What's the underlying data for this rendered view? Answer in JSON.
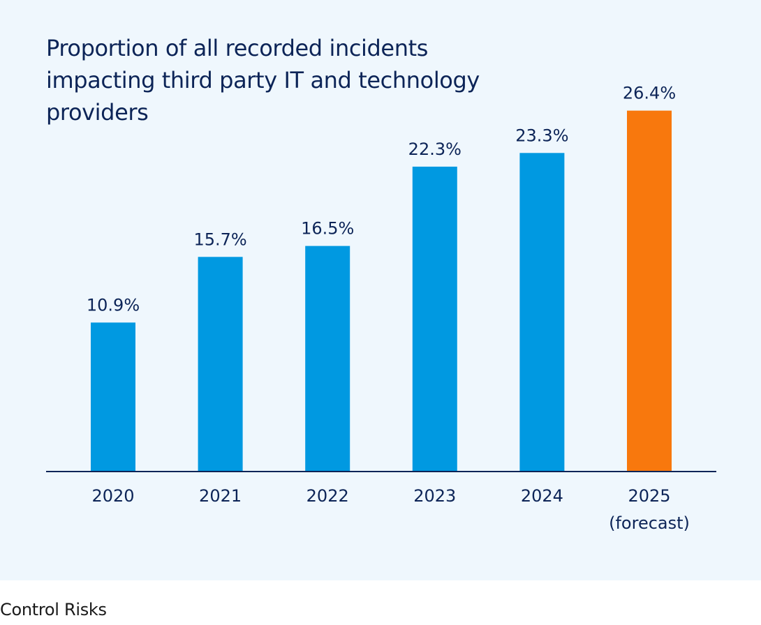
{
  "chart_data": {
    "type": "bar",
    "title": "Proportion of all recorded incidents impacting third party IT and technology providers",
    "categories": [
      [
        "2020"
      ],
      [
        "2021"
      ],
      [
        "2022"
      ],
      [
        "2023"
      ],
      [
        "2024"
      ],
      [
        "2025",
        "(forecast)"
      ]
    ],
    "values": [
      10.9,
      15.7,
      16.5,
      22.3,
      23.3,
      26.4
    ],
    "value_labels": [
      "10.9%",
      "15.7%",
      "16.5%",
      "22.3%",
      "23.3%",
      "26.4%"
    ],
    "colors": [
      "#0099e1",
      "#0099e1",
      "#0099e1",
      "#0099e1",
      "#0099e1",
      "#f8780d"
    ],
    "xlabel": "",
    "ylabel": "",
    "ylim": [
      0,
      30
    ],
    "grid": false,
    "legend": "none"
  },
  "footer": {
    "source": "Control Risks"
  },
  "colors": {
    "background": "#eff7fd",
    "text": "#0c2457",
    "axis": "#0c2457"
  }
}
